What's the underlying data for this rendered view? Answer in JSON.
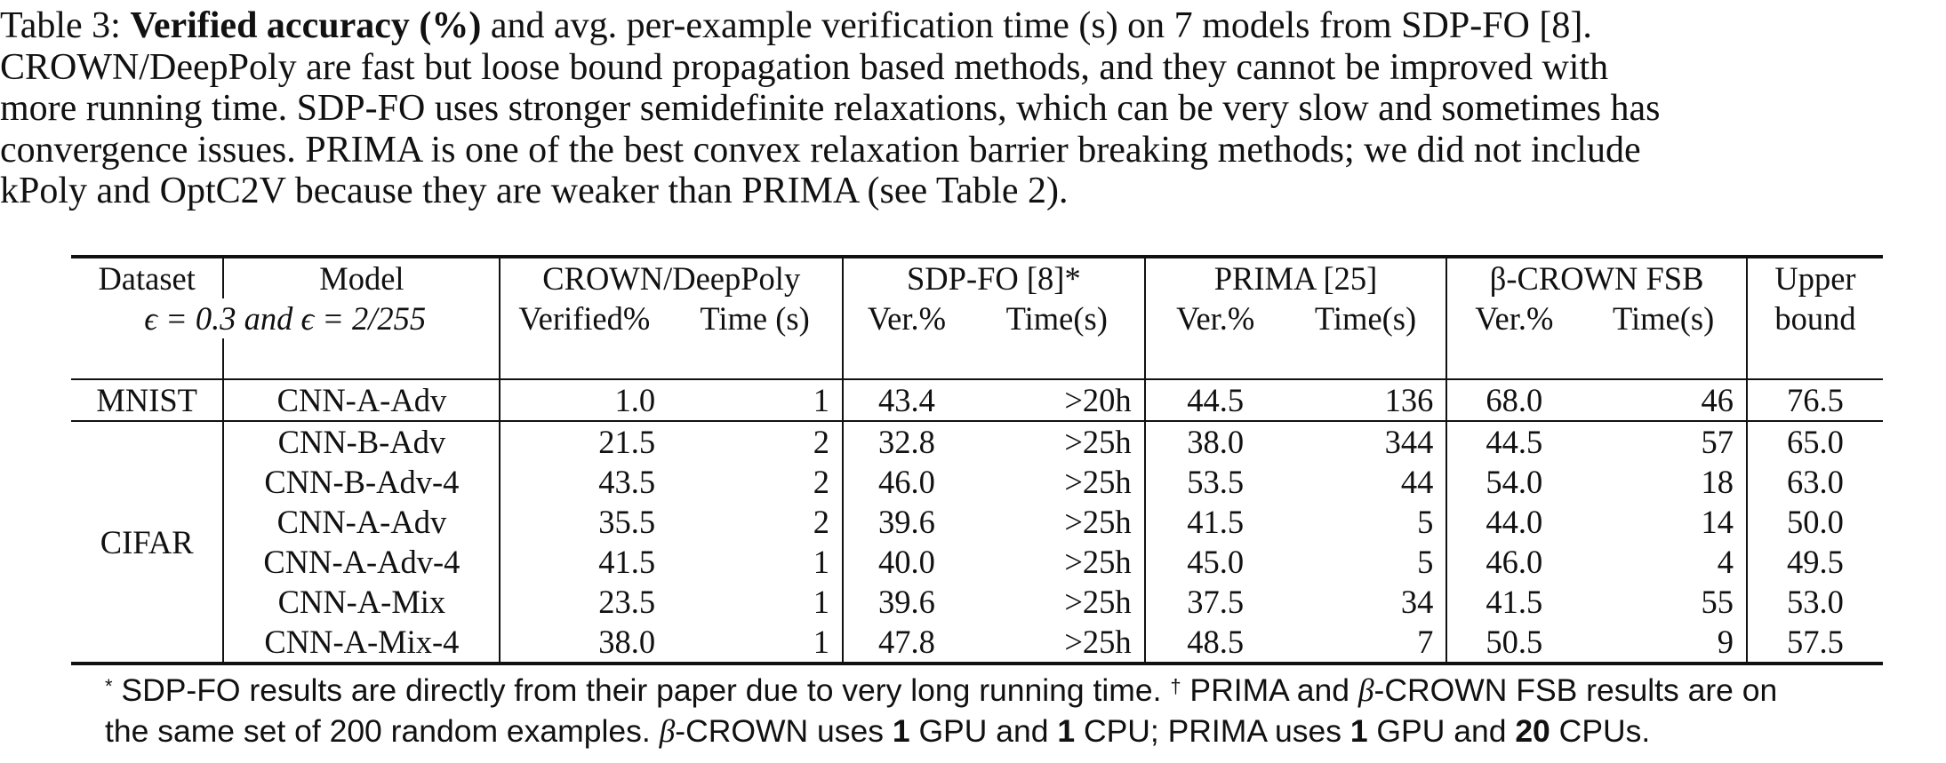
{
  "caption": {
    "label": "Table 3: ",
    "bold_lead": "Verified accuracy (%)",
    "line1_rest": " and avg. per-example verification time (s) on 7 models from SDP-FO [8].",
    "line2": "CROWN/DeepPoly are fast but loose bound propagation based methods, and they cannot be improved with",
    "line3": "more running time. SDP-FO uses stronger semidefinite relaxations, which can be very slow and sometimes has",
    "line4": "convergence issues. PRIMA is one of the best convex relaxation barrier breaking methods; we did not include",
    "line5": "kPoly and OptC2V because they are weaker than PRIMA (see Table 2)."
  },
  "table": {
    "header1": {
      "dataset": "Dataset",
      "model": "Model",
      "crown": "CROWN/DeepPoly",
      "sdp": "SDP-FO [8]*",
      "prima": "PRIMA [25]",
      "beta": "β-CROWN FSB",
      "upper": "Upper"
    },
    "header2": {
      "eps": "ϵ = 0.3 and ϵ = 2/255",
      "crown_ver": "Verified%",
      "crown_time": "Time (s)",
      "sdp_ver": "Ver.%",
      "sdp_time": "Time(s)",
      "prima_ver": "Ver.%",
      "prima_time": "Time(s)",
      "beta_ver": "Ver.%",
      "beta_time": "Time(s)",
      "upper": "bound"
    },
    "mnist": {
      "dataset": "MNIST",
      "row": {
        "model": "CNN-A-Adv",
        "crown_ver": "1.0",
        "crown_time": "1",
        "sdp_ver": "43.4",
        "sdp_time": ">20h",
        "prima_ver": "44.5",
        "prima_time": "136",
        "beta_ver": "68.0",
        "beta_time": "46",
        "upper": "76.5"
      }
    },
    "cifar": {
      "dataset": "CIFAR",
      "rows": [
        {
          "model": "CNN-B-Adv",
          "crown_ver": "21.5",
          "crown_time": "2",
          "sdp_ver": "32.8",
          "sdp_time": ">25h",
          "prima_ver": "38.0",
          "prima_time": "344",
          "beta_ver": "44.5",
          "beta_time": "57",
          "upper": "65.0"
        },
        {
          "model": "CNN-B-Adv-4",
          "crown_ver": "43.5",
          "crown_time": "2",
          "sdp_ver": "46.0",
          "sdp_time": ">25h",
          "prima_ver": "53.5",
          "prima_time": "44",
          "beta_ver": "54.0",
          "beta_time": "18",
          "upper": "63.0"
        },
        {
          "model": "CNN-A-Adv",
          "crown_ver": "35.5",
          "crown_time": "2",
          "sdp_ver": "39.6",
          "sdp_time": ">25h",
          "prima_ver": "41.5",
          "prima_time": "5",
          "beta_ver": "44.0",
          "beta_time": "14",
          "upper": "50.0"
        },
        {
          "model": "CNN-A-Adv-4",
          "crown_ver": "41.5",
          "crown_time": "1",
          "sdp_ver": "40.0",
          "sdp_time": ">25h",
          "prima_ver": "45.0",
          "prima_time": "5",
          "beta_ver": "46.0",
          "beta_time": "4",
          "upper": "49.5"
        },
        {
          "model": "CNN-A-Mix",
          "crown_ver": "23.5",
          "crown_time": "1",
          "sdp_ver": "39.6",
          "sdp_time": ">25h",
          "prima_ver": "37.5",
          "prima_time": "34",
          "beta_ver": "41.5",
          "beta_time": "55",
          "upper": "53.0"
        },
        {
          "model": "CNN-A-Mix-4",
          "crown_ver": "38.0",
          "crown_time": "1",
          "sdp_ver": "47.8",
          "sdp_time": ">25h",
          "prima_ver": "48.5",
          "prima_time": "7",
          "beta_ver": "50.5",
          "beta_time": "9",
          "upper": "57.5"
        }
      ]
    }
  },
  "footnote": {
    "star": "*",
    "text1a": " SDP-FO results are directly from their paper due to very long running time. ",
    "dagger": "†",
    "text1b": " PRIMA and ",
    "beta_sym": "β",
    "text1c": "-CROWN FSB results are on",
    "text2a": "the same set of 200 random examples. ",
    "text2b": "-CROWN uses ",
    "n1": "1",
    "text2c": " GPU and ",
    "n2": "1",
    "text2d": " CPU; PRIMA uses ",
    "n3": "1",
    "text2e": " GPU and ",
    "n4": "20",
    "text2f": " CPUs."
  }
}
